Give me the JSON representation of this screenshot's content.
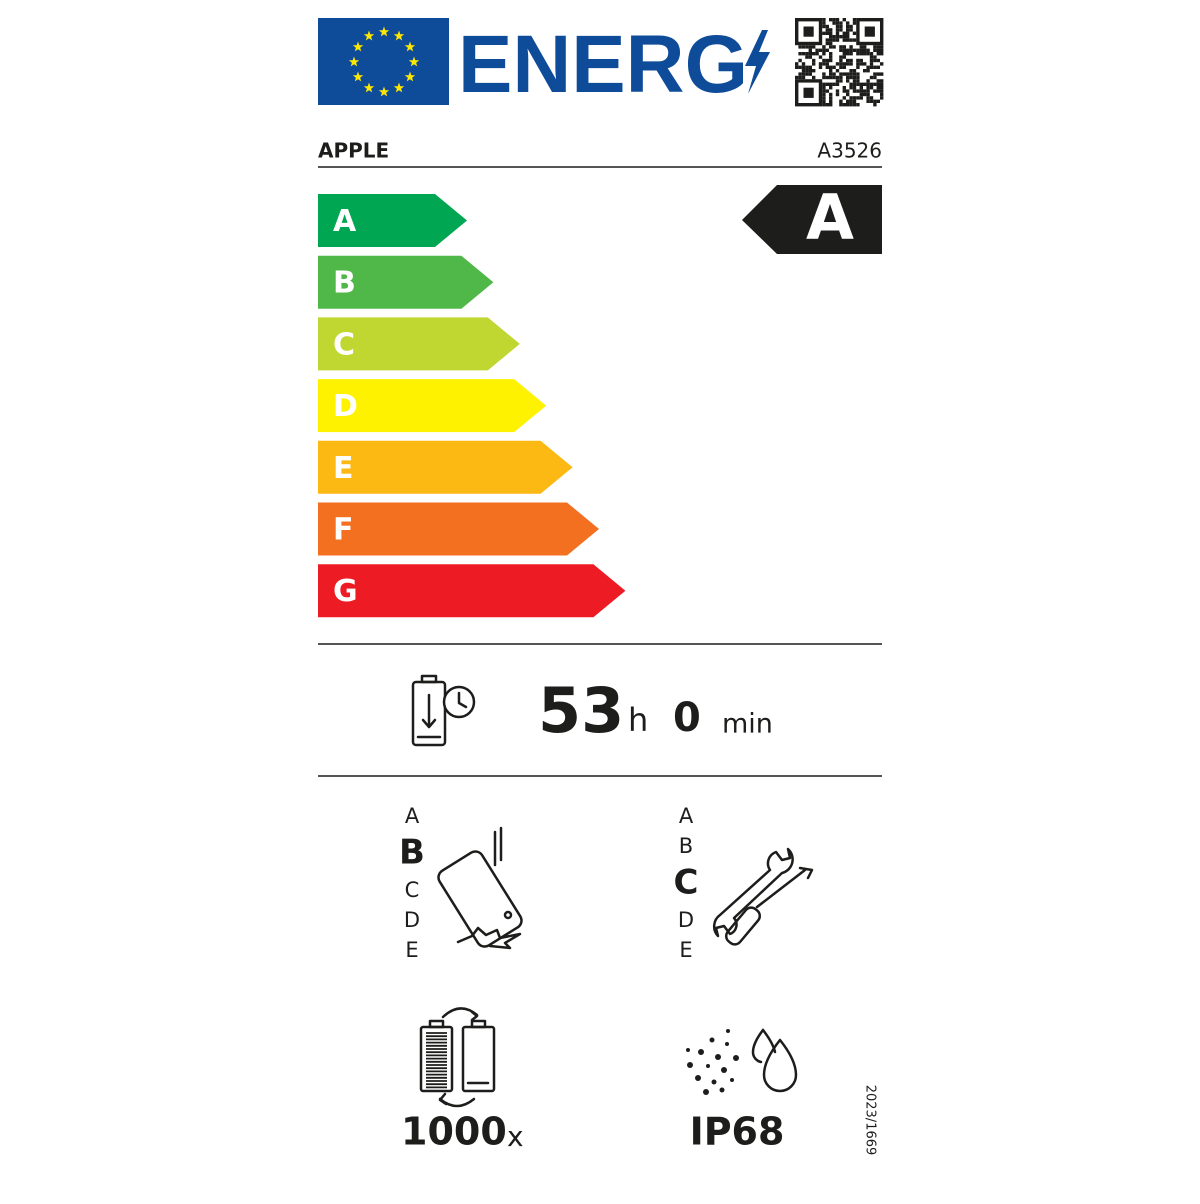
{
  "header": {
    "logo_text": "ENERG"
  },
  "supplier": "APPLE",
  "model": "A3526",
  "efficiency": {
    "classes": [
      "A",
      "B",
      "C",
      "D",
      "E",
      "F",
      "G"
    ],
    "colors": [
      "#00a651",
      "#50b848",
      "#bfd730",
      "#fff200",
      "#fdb913",
      "#f37021",
      "#ed1c24"
    ],
    "rating": "A"
  },
  "battery_endurance": {
    "hours": 53,
    "hours_unit": "h",
    "minutes": 0,
    "minutes_unit": "min"
  },
  "drop_resistance": {
    "classes": [
      "A",
      "B",
      "C",
      "D",
      "E"
    ],
    "rating": "B"
  },
  "repairability": {
    "classes": [
      "A",
      "B",
      "C",
      "D",
      "E"
    ],
    "rating": "C"
  },
  "battery_cycles": {
    "value": 1000,
    "unit": "x"
  },
  "ingress_protection": "IP68",
  "regulation": "2023/1669"
}
